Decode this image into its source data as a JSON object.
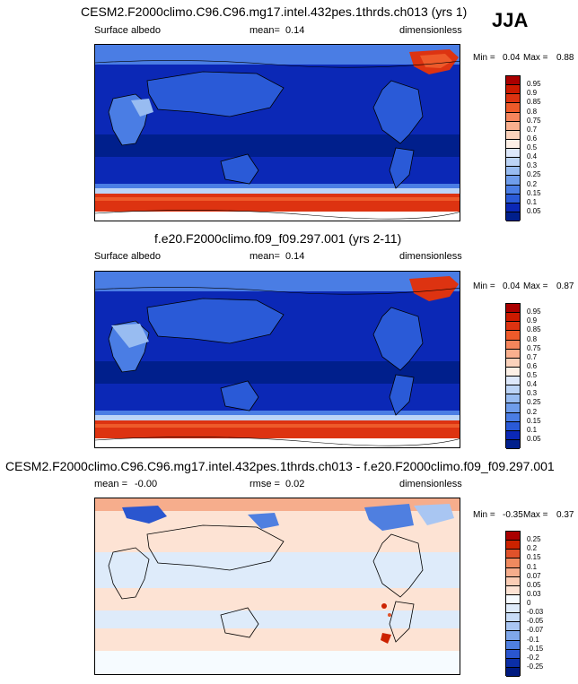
{
  "season": "JJA",
  "panels": [
    {
      "title": "CESM2.F2000climo.C96.C96.mg17.intel.432pes.1thrds.ch013 (yrs 1)",
      "left_label": "Surface albedo",
      "mean_label": "mean=",
      "mean_value": "0.14",
      "units": "dimensionless",
      "min_label": "Min =",
      "min_value": "0.04",
      "max_label": "Max =",
      "max_value": "0.88",
      "levels": [
        "0.95",
        "0.9",
        "0.85",
        "0.8",
        "0.75",
        "0.7",
        "0.6",
        "0.5",
        "0.4",
        "0.3",
        "0.25",
        "0.2",
        "0.15",
        "0.1",
        "0.05"
      ]
    },
    {
      "title": "f.e20.F2000climo.f09_f09.297.001 (yrs 2-11)",
      "left_label": "Surface albedo",
      "mean_label": "mean=",
      "mean_value": "0.14",
      "units": "dimensionless",
      "min_label": "Min =",
      "min_value": "0.04",
      "max_label": "Max =",
      "max_value": "0.87",
      "levels": [
        "0.95",
        "0.9",
        "0.85",
        "0.8",
        "0.75",
        "0.7",
        "0.6",
        "0.5",
        "0.4",
        "0.3",
        "0.25",
        "0.2",
        "0.15",
        "0.1",
        "0.05"
      ]
    },
    {
      "title": "CESM2.F2000climo.C96.C96.mg17.intel.432pes.1thrds.ch013 - f.e20.F2000climo.f09_f09.297.001",
      "mean_label": "mean =",
      "mean_value": "-0.00",
      "rmse_label": "rmse =",
      "rmse_value": "0.02",
      "units": "dimensionless",
      "min_label": "Min =",
      "min_value": "-0.35",
      "max_label": "Max =",
      "max_value": "0.37",
      "levels": [
        "0.25",
        "0.2",
        "0.15",
        "0.1",
        "0.07",
        "0.05",
        "0.03",
        "0",
        "-0.03",
        "-0.05",
        "-0.07",
        "-0.1",
        "-0.15",
        "-0.2",
        "-0.25"
      ]
    }
  ],
  "colors": {
    "abs_scale": [
      "#aa0000",
      "#cc1a00",
      "#dd3311",
      "#ee5a2a",
      "#f5855c",
      "#f9b08e",
      "#fbd2bb",
      "#fdf0e6",
      "#dde8fb",
      "#bcd4f6",
      "#98bcf1",
      "#6f9deb",
      "#4a7de4",
      "#2a5ad7",
      "#0b28b6",
      "#001f8c"
    ],
    "diff_scale": [
      "#aa0000",
      "#cc2200",
      "#e0522a",
      "#f08a5f",
      "#f6ad8c",
      "#fbcdb5",
      "#fde3d4",
      "#f6fbff",
      "#deebfa",
      "#c7dcf7",
      "#a9c6f2",
      "#7fa7ea",
      "#4f7fe0",
      "#2a56cf",
      "#0b2ea6",
      "#001a80"
    ]
  }
}
